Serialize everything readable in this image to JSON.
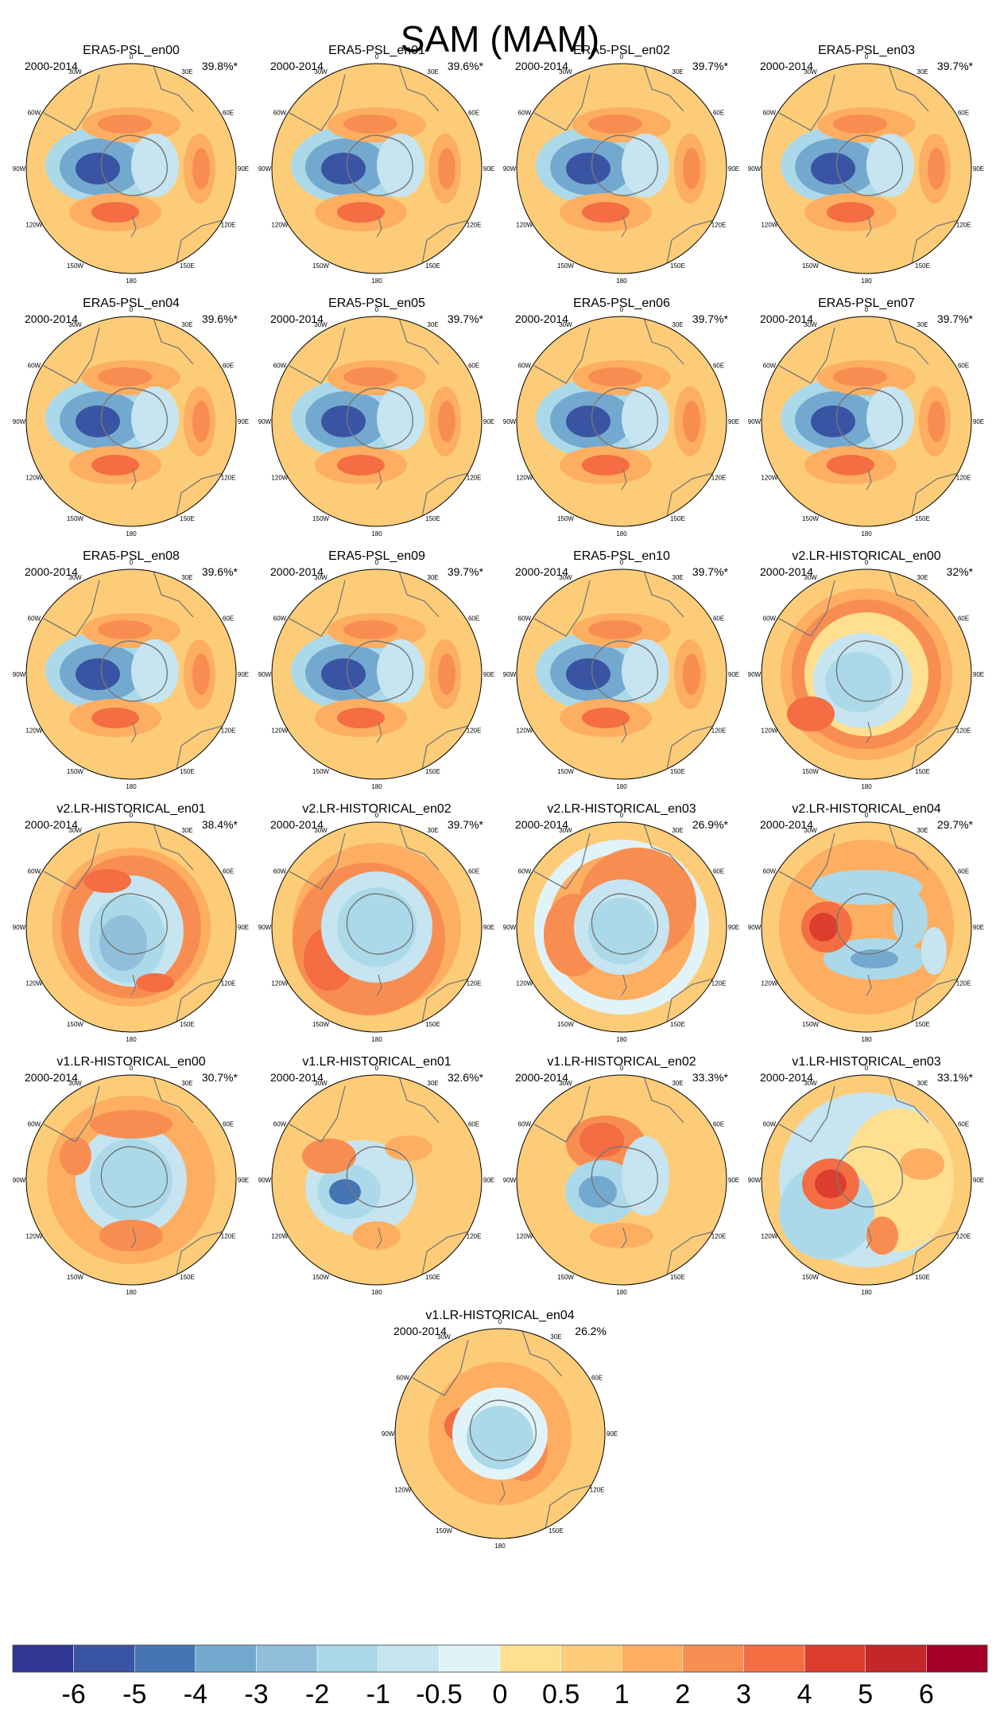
{
  "title": "SAM (MAM)",
  "labels": {
    "period": "2000-2014",
    "lon": [
      "0",
      "30E",
      "60E",
      "90E",
      "120E",
      "150E",
      "180",
      "150W",
      "120W",
      "90W",
      "60W",
      "30W"
    ]
  },
  "colors": {
    "levels": [
      "#313695",
      "#3a54a4",
      "#4575b4",
      "#74a9cf",
      "#91bfdb",
      "#abd9e9",
      "#c6e5f0",
      "#e0f3f8",
      "#fee090",
      "#fdcc78",
      "#fdae61",
      "#f88d52",
      "#f46d43",
      "#dd3d2d",
      "#c4262a",
      "#a50026"
    ],
    "land": "#777777"
  },
  "chart_data": {
    "type": "heatmap",
    "colorbar": {
      "tick_labels": [
        "-6",
        "-5",
        "-4",
        "-3",
        "-2",
        "-1",
        "-0.5",
        "0",
        "0.5",
        "1",
        "2",
        "3",
        "4",
        "5",
        "6"
      ],
      "boundaries": [
        -6,
        -5,
        -4,
        -3,
        -2,
        -1,
        -0.5,
        0,
        0.5,
        1,
        2,
        3,
        4,
        5,
        6
      ]
    },
    "panels": [
      {
        "name": "ERA5-PSL_en00",
        "variance": "39.8%*"
      },
      {
        "name": "ERA5-PSL_en01",
        "variance": "39.6%*"
      },
      {
        "name": "ERA5-PSL_en02",
        "variance": "39.7%*"
      },
      {
        "name": "ERA5-PSL_en03",
        "variance": "39.7%*"
      },
      {
        "name": "ERA5-PSL_en04",
        "variance": "39.6%*"
      },
      {
        "name": "ERA5-PSL_en05",
        "variance": "39.7%*"
      },
      {
        "name": "ERA5-PSL_en06",
        "variance": "39.7%*"
      },
      {
        "name": "ERA5-PSL_en07",
        "variance": "39.7%*"
      },
      {
        "name": "ERA5-PSL_en08",
        "variance": "39.6%*"
      },
      {
        "name": "ERA5-PSL_en09",
        "variance": "39.7%*"
      },
      {
        "name": "ERA5-PSL_en10",
        "variance": "39.7%*"
      },
      {
        "name": "v2.LR-HISTORICAL_en00",
        "variance": "32%*"
      },
      {
        "name": "v2.LR-HISTORICAL_en01",
        "variance": "38.4%*"
      },
      {
        "name": "v2.LR-HISTORICAL_en02",
        "variance": "39.7%*"
      },
      {
        "name": "v2.LR-HISTORICAL_en03",
        "variance": "26.9%*"
      },
      {
        "name": "v2.LR-HISTORICAL_en04",
        "variance": "29.7%*"
      },
      {
        "name": "v1.LR-HISTORICAL_en00",
        "variance": "30.7%*"
      },
      {
        "name": "v1.LR-HISTORICAL_en01",
        "variance": "32.6%*"
      },
      {
        "name": "v1.LR-HISTORICAL_en02",
        "variance": "33.3%*"
      },
      {
        "name": "v1.LR-HISTORICAL_en03",
        "variance": "33.1%*"
      },
      {
        "name": "v1.LR-HISTORICAL_en04",
        "variance": "26.2%"
      }
    ]
  }
}
